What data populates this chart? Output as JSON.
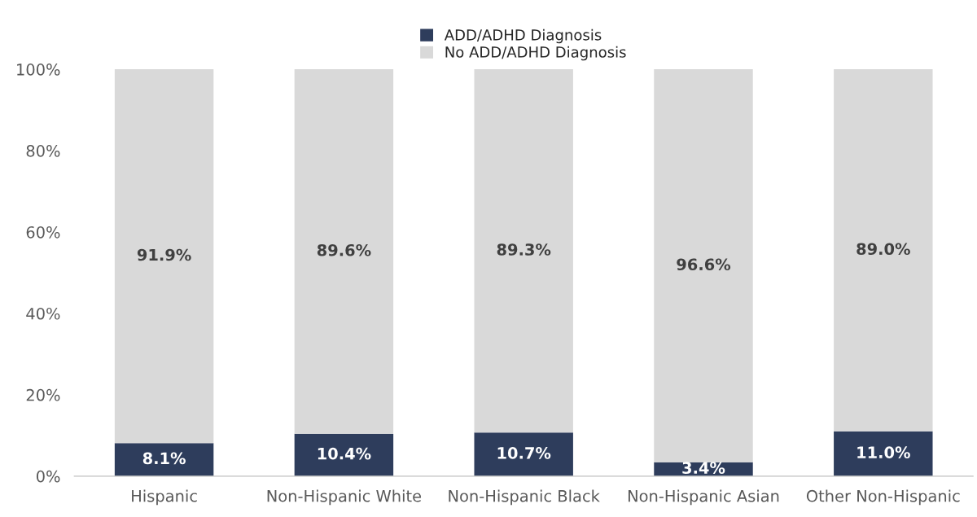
{
  "chart_data": {
    "type": "bar",
    "stacked": true,
    "categories": [
      "Hispanic",
      "Non-Hispanic White",
      "Non-Hispanic Black",
      "Non-Hispanic Asian",
      "Other Non-Hispanic"
    ],
    "series": [
      {
        "name": "ADD/ADHD Diagnosis",
        "color": "#2e3d5c",
        "values": [
          8.1,
          10.4,
          10.7,
          3.4,
          11.0
        ],
        "value_labels": [
          "8.1%",
          "10.4%",
          "10.7%",
          "3.4%",
          "11.0%"
        ]
      },
      {
        "name": "No ADD/ADHD Diagnosis",
        "color": "#d9d9d9",
        "values": [
          91.9,
          89.6,
          89.3,
          96.6,
          89.0
        ],
        "value_labels": [
          "91.9%",
          "89.6%",
          "89.3%",
          "96.6%",
          "89.0%"
        ]
      }
    ],
    "ylim": [
      0,
      100
    ],
    "yticks": [
      {
        "value": 0,
        "label": "0%"
      },
      {
        "value": 20,
        "label": "20%"
      },
      {
        "value": 40,
        "label": "40%"
      },
      {
        "value": 60,
        "label": "60%"
      },
      {
        "value": 80,
        "label": "80%"
      },
      {
        "value": 100,
        "label": "100%"
      }
    ],
    "grid": false,
    "legend": "top"
  }
}
